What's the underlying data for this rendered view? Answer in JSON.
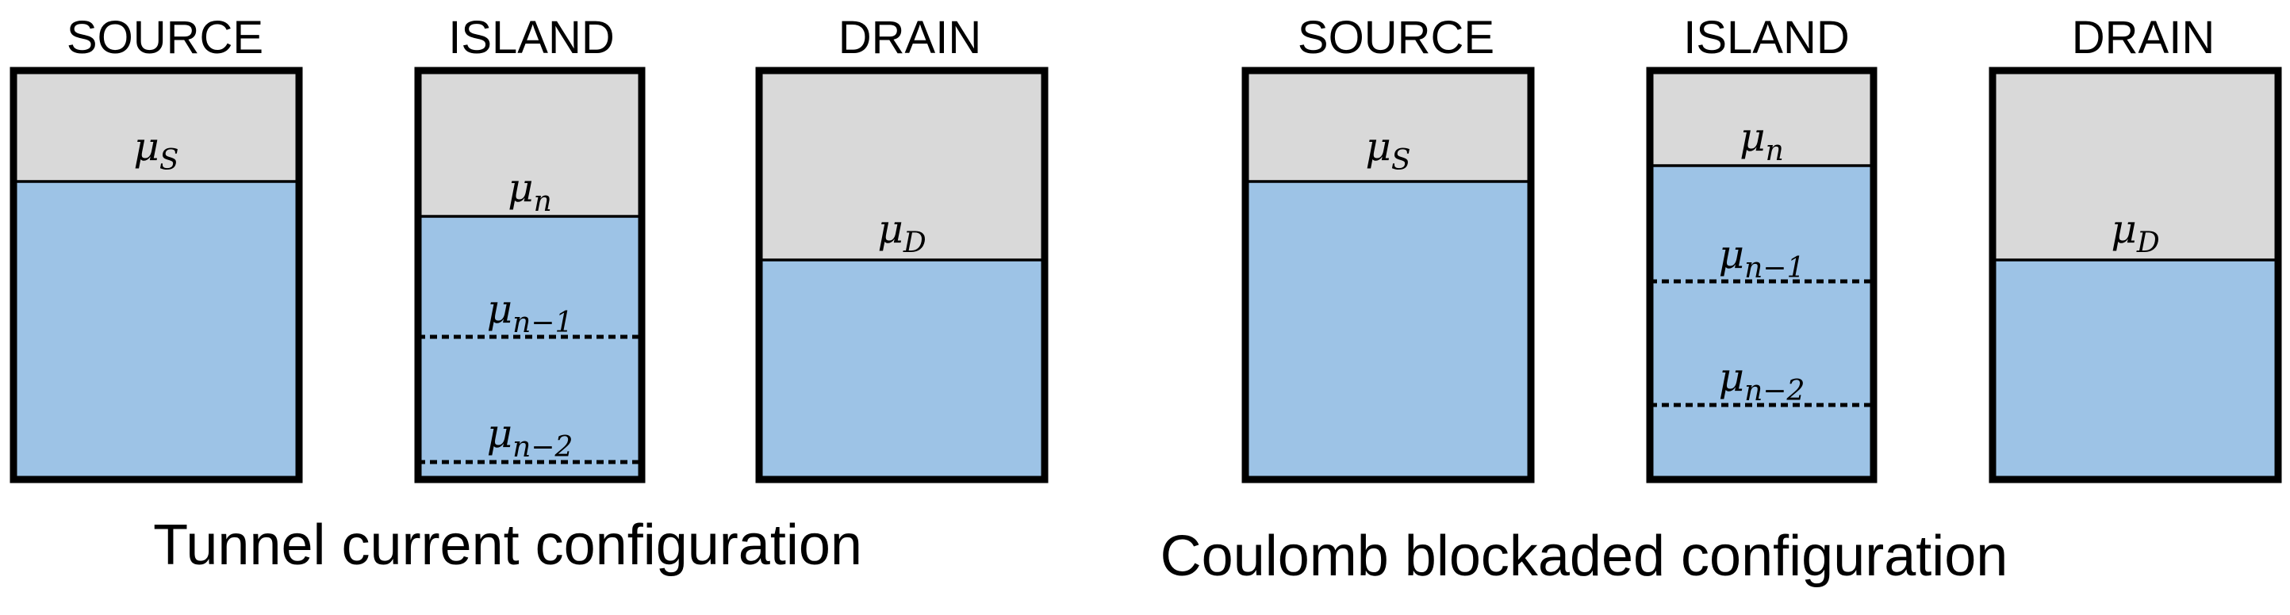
{
  "colors": {
    "empty_states": "#d9d9d9",
    "filled_states": "#9dc3e6",
    "frame": "#000000"
  },
  "panels": [
    {
      "caption": "Tunnel current configuration",
      "boxes": [
        {
          "header": "SOURCE",
          "levels": [
            {
              "symbol": "μ",
              "sub": "S",
              "style": "solid"
            }
          ]
        },
        {
          "header": "ISLAND",
          "levels": [
            {
              "symbol": "μ",
              "sub": "n",
              "style": "solid"
            },
            {
              "symbol": "μ",
              "sub": "n−1",
              "style": "dotted"
            },
            {
              "symbol": "μ",
              "sub": "n−2",
              "style": "dotted"
            }
          ]
        },
        {
          "header": "DRAIN",
          "levels": [
            {
              "symbol": "μ",
              "sub": "D",
              "style": "solid"
            }
          ]
        }
      ]
    },
    {
      "caption": "Coulomb blockaded configuration",
      "boxes": [
        {
          "header": "SOURCE",
          "levels": [
            {
              "symbol": "μ",
              "sub": "S",
              "style": "solid"
            }
          ]
        },
        {
          "header": "ISLAND",
          "levels": [
            {
              "symbol": "μ",
              "sub": "n",
              "style": "solid"
            },
            {
              "symbol": "μ",
              "sub": "n−1",
              "style": "dotted"
            },
            {
              "symbol": "μ",
              "sub": "n−2",
              "style": "dotted"
            }
          ]
        },
        {
          "header": "DRAIN",
          "levels": [
            {
              "symbol": "μ",
              "sub": "D",
              "style": "solid"
            }
          ]
        }
      ]
    }
  ]
}
